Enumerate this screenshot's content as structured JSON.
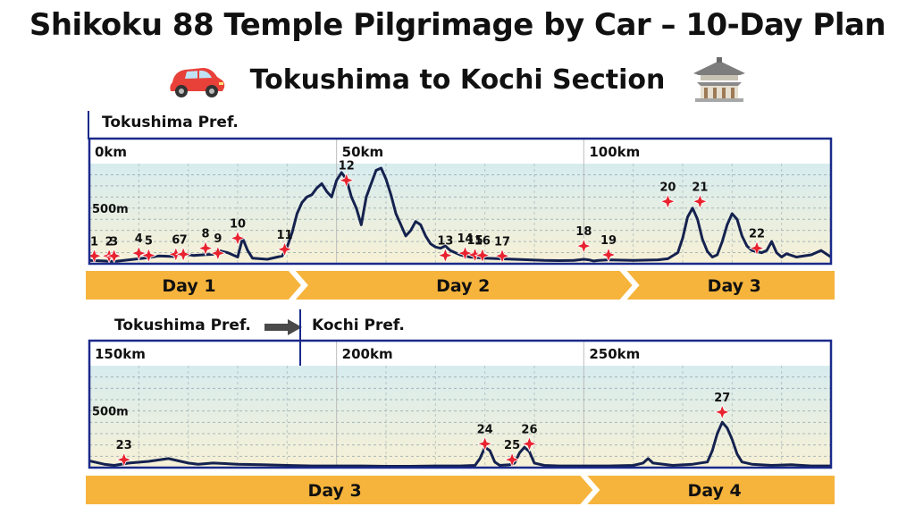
{
  "header": {
    "title": "Shikoku 88 Temple Pilgrimage by Car – 10-Day Plan",
    "subtitle": "Tokushima to Kochi Section"
  },
  "icons": {
    "left": "car-icon",
    "right": "temple-icon"
  },
  "colors": {
    "border": "#1a2a8a",
    "line": "#15224f",
    "marker": "#e8232f",
    "daybar": "#f6b43c",
    "grid": "#8aa0a8"
  },
  "prefectures": {
    "top": "Tokushima Pref.",
    "bottom_left": "Tokushima Pref.",
    "bottom_right": "Kochi Pref."
  },
  "chart_data": [
    {
      "type": "line",
      "x_ticks": [
        "0km",
        "50km",
        "100km"
      ],
      "y_tick": "500m",
      "xlim": [
        0,
        150
      ],
      "ylim": [
        0,
        900
      ],
      "grid": true,
      "profile": [
        [
          0,
          30
        ],
        [
          3,
          25
        ],
        [
          5,
          20
        ],
        [
          8,
          35
        ],
        [
          11,
          50
        ],
        [
          14,
          70
        ],
        [
          17,
          65
        ],
        [
          19,
          90
        ],
        [
          21,
          75
        ],
        [
          23,
          80
        ],
        [
          25,
          85
        ],
        [
          26,
          120
        ],
        [
          28,
          100
        ],
        [
          30,
          60
        ],
        [
          31,
          230
        ],
        [
          32,
          120
        ],
        [
          33,
          50
        ],
        [
          36,
          40
        ],
        [
          38,
          60
        ],
        [
          39,
          70
        ],
        [
          40,
          150
        ],
        [
          41,
          280
        ],
        [
          42,
          450
        ],
        [
          43,
          550
        ],
        [
          44,
          600
        ],
        [
          45,
          620
        ],
        [
          46,
          680
        ],
        [
          47,
          720
        ],
        [
          48,
          650
        ],
        [
          49,
          600
        ],
        [
          50,
          750
        ],
        [
          51,
          820
        ],
        [
          52,
          760
        ],
        [
          53,
          600
        ],
        [
          54,
          500
        ],
        [
          55,
          350
        ],
        [
          56,
          600
        ],
        [
          57,
          720
        ],
        [
          58,
          840
        ],
        [
          59,
          860
        ],
        [
          60,
          760
        ],
        [
          61,
          620
        ],
        [
          62,
          450
        ],
        [
          63,
          350
        ],
        [
          64,
          250
        ],
        [
          65,
          300
        ],
        [
          66,
          380
        ],
        [
          67,
          350
        ],
        [
          68,
          250
        ],
        [
          69,
          180
        ],
        [
          70,
          150
        ],
        [
          71,
          140
        ],
        [
          72,
          160
        ],
        [
          73,
          120
        ],
        [
          74,
          100
        ],
        [
          75,
          80
        ],
        [
          77,
          60
        ],
        [
          80,
          50
        ],
        [
          83,
          45
        ],
        [
          86,
          40
        ],
        [
          89,
          35
        ],
        [
          92,
          30
        ],
        [
          95,
          28
        ],
        [
          98,
          30
        ],
        [
          100,
          40
        ],
        [
          101,
          35
        ],
        [
          102,
          25
        ],
        [
          103,
          30
        ],
        [
          105,
          35
        ],
        [
          110,
          30
        ],
        [
          115,
          35
        ],
        [
          117,
          45
        ],
        [
          119,
          100
        ],
        [
          120,
          230
        ],
        [
          121,
          420
        ],
        [
          122,
          500
        ],
        [
          123,
          400
        ],
        [
          124,
          220
        ],
        [
          125,
          110
        ],
        [
          126,
          60
        ],
        [
          127,
          80
        ],
        [
          128,
          200
        ],
        [
          129,
          350
        ],
        [
          130,
          450
        ],
        [
          131,
          400
        ],
        [
          132,
          250
        ],
        [
          133,
          160
        ],
        [
          134,
          120
        ],
        [
          136,
          100
        ],
        [
          137,
          120
        ],
        [
          138,
          200
        ],
        [
          139,
          100
        ],
        [
          140,
          60
        ],
        [
          141,
          90
        ],
        [
          143,
          60
        ],
        [
          146,
          80
        ],
        [
          148,
          120
        ],
        [
          150,
          60
        ]
      ],
      "temples": [
        {
          "label": "1",
          "x": 1,
          "y": 70
        },
        {
          "label": "2",
          "x": 4,
          "y": 70
        },
        {
          "label": "3",
          "x": 5,
          "y": 70
        },
        {
          "label": "4",
          "x": 10,
          "y": 95
        },
        {
          "label": "5",
          "x": 12,
          "y": 75
        },
        {
          "label": "6",
          "x": 17.5,
          "y": 85
        },
        {
          "label": "7",
          "x": 19,
          "y": 85
        },
        {
          "label": "8",
          "x": 23.5,
          "y": 140
        },
        {
          "label": "9",
          "x": 26,
          "y": 95
        },
        {
          "label": "10",
          "x": 30,
          "y": 230
        },
        {
          "label": "11",
          "x": 39.5,
          "y": 130
        },
        {
          "label": "12",
          "x": 52,
          "y": 750
        },
        {
          "label": "13",
          "x": 72,
          "y": 75
        },
        {
          "label": "14",
          "x": 76,
          "y": 95
        },
        {
          "label": "15",
          "x": 78,
          "y": 80
        },
        {
          "label": "16",
          "x": 79.5,
          "y": 75
        },
        {
          "label": "17",
          "x": 83.5,
          "y": 70
        },
        {
          "label": "18",
          "x": 100,
          "y": 160
        },
        {
          "label": "19",
          "x": 105,
          "y": 80
        },
        {
          "label": "20",
          "x": 117,
          "y": 560
        },
        {
          "label": "21",
          "x": 123.5,
          "y": 560
        },
        {
          "label": "22",
          "x": 135,
          "y": 140
        }
      ],
      "days": [
        {
          "label": "Day 1",
          "from": 0,
          "to": 41
        },
        {
          "label": "Day 2",
          "from": 41,
          "to": 108
        },
        {
          "label": "Day 3",
          "from": 108,
          "to": 150
        }
      ]
    },
    {
      "type": "line",
      "x_ticks": [
        "150km",
        "200km",
        "250km"
      ],
      "y_tick": "500m",
      "xlim": [
        150,
        300
      ],
      "ylim": [
        0,
        900
      ],
      "grid": true,
      "profile": [
        [
          150,
          60
        ],
        [
          153,
          30
        ],
        [
          155,
          20
        ],
        [
          158,
          40
        ],
        [
          162,
          55
        ],
        [
          166,
          80
        ],
        [
          168,
          60
        ],
        [
          170,
          40
        ],
        [
          172,
          30
        ],
        [
          175,
          40
        ],
        [
          180,
          30
        ],
        [
          185,
          25
        ],
        [
          190,
          20
        ],
        [
          195,
          15
        ],
        [
          200,
          15
        ],
        [
          205,
          15
        ],
        [
          210,
          12
        ],
        [
          215,
          12
        ],
        [
          220,
          15
        ],
        [
          225,
          15
        ],
        [
          228,
          20
        ],
        [
          229,
          80
        ],
        [
          230,
          180
        ],
        [
          231,
          150
        ],
        [
          232,
          50
        ],
        [
          233,
          20
        ],
        [
          235,
          25
        ],
        [
          236,
          40
        ],
        [
          237,
          130
        ],
        [
          238,
          180
        ],
        [
          239,
          140
        ],
        [
          240,
          40
        ],
        [
          242,
          20
        ],
        [
          245,
          15
        ],
        [
          250,
          15
        ],
        [
          255,
          15
        ],
        [
          260,
          20
        ],
        [
          262,
          40
        ],
        [
          263,
          80
        ],
        [
          264,
          40
        ],
        [
          268,
          20
        ],
        [
          272,
          30
        ],
        [
          275,
          50
        ],
        [
          276,
          150
        ],
        [
          277,
          300
        ],
        [
          278,
          400
        ],
        [
          279,
          350
        ],
        [
          280,
          250
        ],
        [
          281,
          120
        ],
        [
          282,
          50
        ],
        [
          284,
          30
        ],
        [
          288,
          20
        ],
        [
          292,
          25
        ],
        [
          296,
          15
        ],
        [
          300,
          15
        ]
      ],
      "temples": [
        {
          "label": "23",
          "x": 157,
          "y": 70
        },
        {
          "label": "24",
          "x": 230,
          "y": 210
        },
        {
          "label": "25",
          "x": 235.5,
          "y": 70
        },
        {
          "label": "26",
          "x": 239,
          "y": 210
        },
        {
          "label": "27",
          "x": 278,
          "y": 490
        }
      ],
      "days": [
        {
          "label": "Day 3",
          "from": 150,
          "to": 250
        },
        {
          "label": "Day 4",
          "from": 250,
          "to": 300
        }
      ]
    }
  ]
}
